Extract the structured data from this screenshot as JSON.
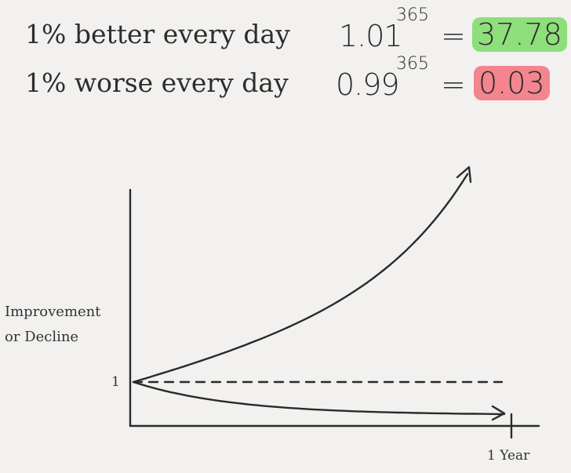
{
  "header": {
    "better": {
      "label": "1% better every day",
      "base": "1.01",
      "exponent": "365",
      "equals": "=",
      "result": "37.78",
      "highlight_color": "#8fde7c"
    },
    "worse": {
      "label": "1% worse every day",
      "base": "0.99",
      "exponent": "365",
      "equals": "=",
      "result": "0.03",
      "highlight_color": "#f4858f"
    }
  },
  "chart_data": {
    "type": "line",
    "ylabel": "Improvement\nor Decline",
    "xlabel": "",
    "y_tick_labels": [
      "1"
    ],
    "x_tick_labels": [
      "1 Year"
    ],
    "x_range_days": [
      0,
      365
    ],
    "grid": false,
    "series": [
      {
        "rate": 1.01,
        "end_value": 37.78,
        "style": "solid-arrow"
      },
      {
        "rate": 0.99,
        "end_value": 0.03,
        "style": "solid-arrow"
      },
      {
        "constant": 1,
        "style": "dashed"
      }
    ]
  }
}
